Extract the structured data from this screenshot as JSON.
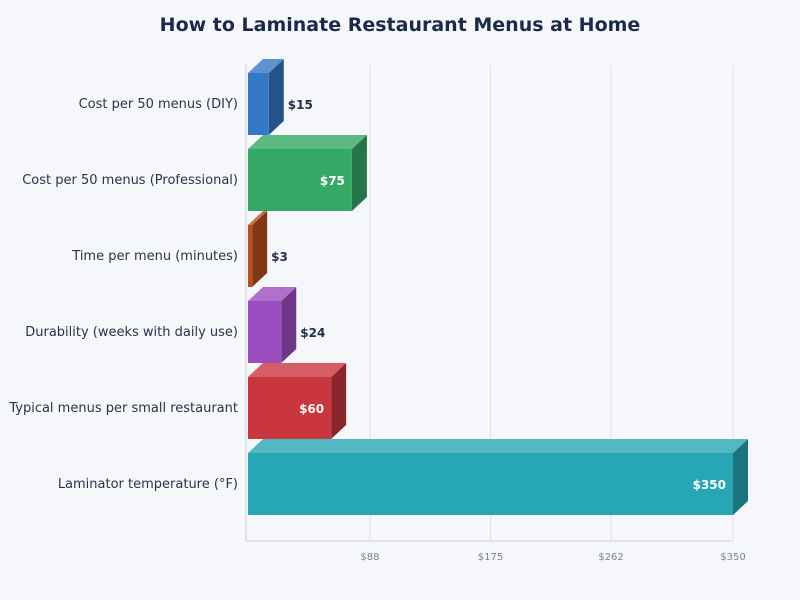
{
  "chart_data": {
    "type": "bar",
    "orientation": "horizontal",
    "style": "3d",
    "title": "How to Laminate Restaurant Menus at Home",
    "xlabel": "",
    "ylabel": "",
    "categories": [
      "Cost per 50 menus (DIY)",
      "Cost per 50 menus (Professional)",
      "Time per menu (minutes)",
      "Durability (weeks with daily use)",
      "Typical menus per small restaurant",
      "Laminator temperature (°F)"
    ],
    "values": [
      15,
      75,
      3,
      24,
      60,
      350
    ],
    "value_labels": [
      "$15",
      "$75",
      "$3",
      "$24",
      "$60",
      "$350"
    ],
    "colors": [
      "#3478c6",
      "#35a865",
      "#b84f1c",
      "#9b4dbf",
      "#c9363d",
      "#27a6b5"
    ],
    "xlim": [
      0,
      350
    ],
    "x_ticks": [
      88,
      175,
      262,
      350
    ],
    "x_tick_labels": [
      "$88",
      "$175",
      "$262",
      "$350"
    ],
    "grid": true,
    "legend": "none"
  }
}
